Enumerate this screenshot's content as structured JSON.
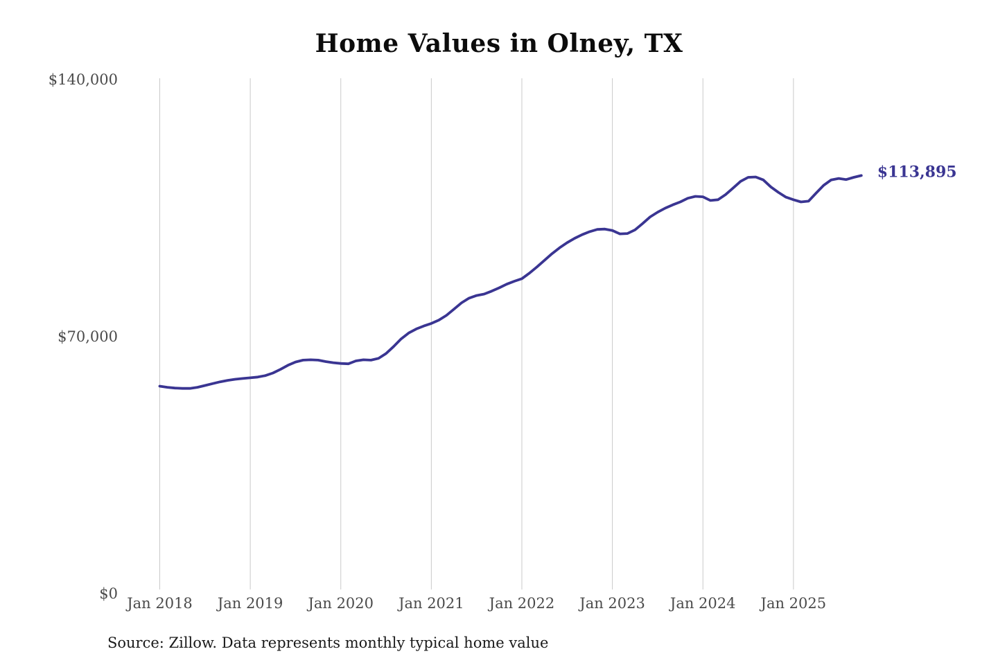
{
  "title": "Home Values in Olney, TX",
  "source_note": "Source: Zillow. Data represents monthly typical home value",
  "end_label": "$113,895",
  "colors": {
    "line": "#3a3592",
    "grid": "#c9c9c9",
    "axis_label": "#4a4a4a",
    "title": "#0c0c0c",
    "source": "#1a1a1a",
    "background": "#ffffff"
  },
  "chart_data": {
    "type": "line",
    "title": "Home Values in Olney, TX",
    "xlabel": "",
    "ylabel": "",
    "ylim": [
      0,
      140000
    ],
    "grid": "vertical-yearly",
    "legend_position": "none",
    "x_tick_labels": [
      "Jan 2018",
      "Jan 2019",
      "Jan 2020",
      "Jan 2021",
      "Jan 2022",
      "Jan 2023",
      "Jan 2024",
      "Jan 2025"
    ],
    "y_tick_labels": [
      "$140,000",
      "$70,000",
      "$0"
    ],
    "y_tick_values": [
      140000,
      70000,
      0
    ],
    "annotation": {
      "text": "$113,895",
      "attached_to": "last-point"
    },
    "series": [
      {
        "name": "Typical home value",
        "months": [
          "2018-01",
          "2018-02",
          "2018-03",
          "2018-04",
          "2018-05",
          "2018-06",
          "2018-07",
          "2018-08",
          "2018-09",
          "2018-10",
          "2018-11",
          "2018-12",
          "2019-01",
          "2019-02",
          "2019-03",
          "2019-04",
          "2019-05",
          "2019-06",
          "2019-07",
          "2019-08",
          "2019-09",
          "2019-10",
          "2019-11",
          "2019-12",
          "2020-01",
          "2020-02",
          "2020-03",
          "2020-04",
          "2020-05",
          "2020-06",
          "2020-07",
          "2020-08",
          "2020-09",
          "2020-10",
          "2020-11",
          "2020-12",
          "2021-01",
          "2021-02",
          "2021-03",
          "2021-04",
          "2021-05",
          "2021-06",
          "2021-07",
          "2021-08",
          "2021-09",
          "2021-10",
          "2021-11",
          "2021-12",
          "2022-01",
          "2022-02",
          "2022-03",
          "2022-04",
          "2022-05",
          "2022-06",
          "2022-07",
          "2022-08",
          "2022-09",
          "2022-10",
          "2022-11",
          "2022-12",
          "2023-01",
          "2023-02",
          "2023-03",
          "2023-04",
          "2023-05",
          "2023-06",
          "2023-07",
          "2023-08",
          "2023-09",
          "2023-10",
          "2023-11",
          "2023-12",
          "2024-01",
          "2024-02",
          "2024-03",
          "2024-04",
          "2024-05",
          "2024-06",
          "2024-07",
          "2024-08",
          "2024-09",
          "2024-10",
          "2024-11",
          "2024-12",
          "2025-01",
          "2025-02",
          "2025-03",
          "2025-04",
          "2025-05",
          "2025-06",
          "2025-07",
          "2025-08",
          "2025-09",
          "2025-10"
        ],
        "values": [
          56500,
          56200,
          56000,
          55900,
          55900,
          56200,
          56700,
          57200,
          57700,
          58100,
          58400,
          58600,
          58800,
          59000,
          59400,
          60100,
          61100,
          62200,
          63100,
          63600,
          63700,
          63600,
          63200,
          62900,
          62700,
          62600,
          63400,
          63700,
          63600,
          64100,
          65400,
          67300,
          69400,
          71000,
          72100,
          72900,
          73600,
          74500,
          75800,
          77500,
          79200,
          80500,
          81200,
          81600,
          82400,
          83300,
          84300,
          85100,
          85800,
          87300,
          89000,
          90800,
          92600,
          94200,
          95600,
          96800,
          97800,
          98600,
          99200,
          99300,
          98900,
          98000,
          98100,
          99100,
          100800,
          102600,
          103900,
          105000,
          105900,
          106700,
          107700,
          108200,
          108100,
          107100,
          107300,
          108700,
          110500,
          112300,
          113400,
          113500,
          112700,
          110800,
          109300,
          108000,
          107300,
          106700,
          106900,
          109100,
          111200,
          112700,
          113100,
          112800,
          113400,
          113895
        ]
      }
    ]
  }
}
